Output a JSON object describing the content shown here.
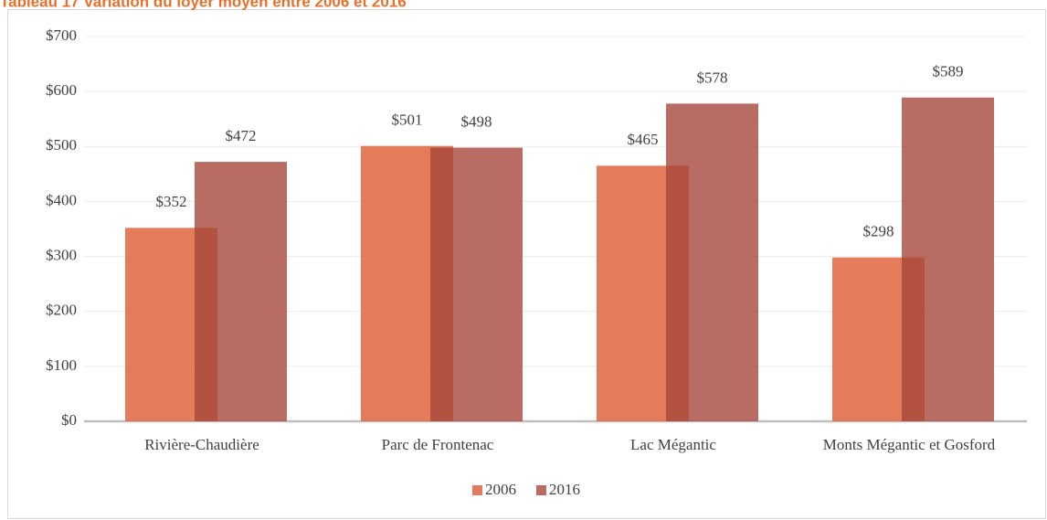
{
  "chart_data": {
    "type": "bar",
    "title": "Tableau 17 Variation du loyer moyen entre 2006 et 2016",
    "categories": [
      "Rivière-Chaudière",
      "Parc de Frontenac",
      "Lac Mégantic",
      "Monts Mégantic et Gosford"
    ],
    "series": [
      {
        "name": "2006",
        "color": "#e06a45",
        "values": [
          352,
          501,
          465,
          298
        ],
        "value_labels": [
          "$352",
          "$501",
          "$465",
          "$298"
        ]
      },
      {
        "name": "2016",
        "color": "#a8473c",
        "values": [
          472,
          498,
          578,
          589
        ],
        "value_labels": [
          "$472",
          "$498",
          "$578",
          "$589"
        ]
      }
    ],
    "ylim": [
      0,
      700
    ],
    "yticks": [
      {
        "value": 0,
        "label": "$0"
      },
      {
        "value": 100,
        "label": "$100"
      },
      {
        "value": 200,
        "label": "$200"
      },
      {
        "value": 300,
        "label": "$300"
      },
      {
        "value": 400,
        "label": "$400"
      },
      {
        "value": 500,
        "label": "$500"
      },
      {
        "value": 600,
        "label": "$600"
      },
      {
        "value": 700,
        "label": "$700"
      }
    ],
    "grid": true,
    "legend": "bottom"
  }
}
